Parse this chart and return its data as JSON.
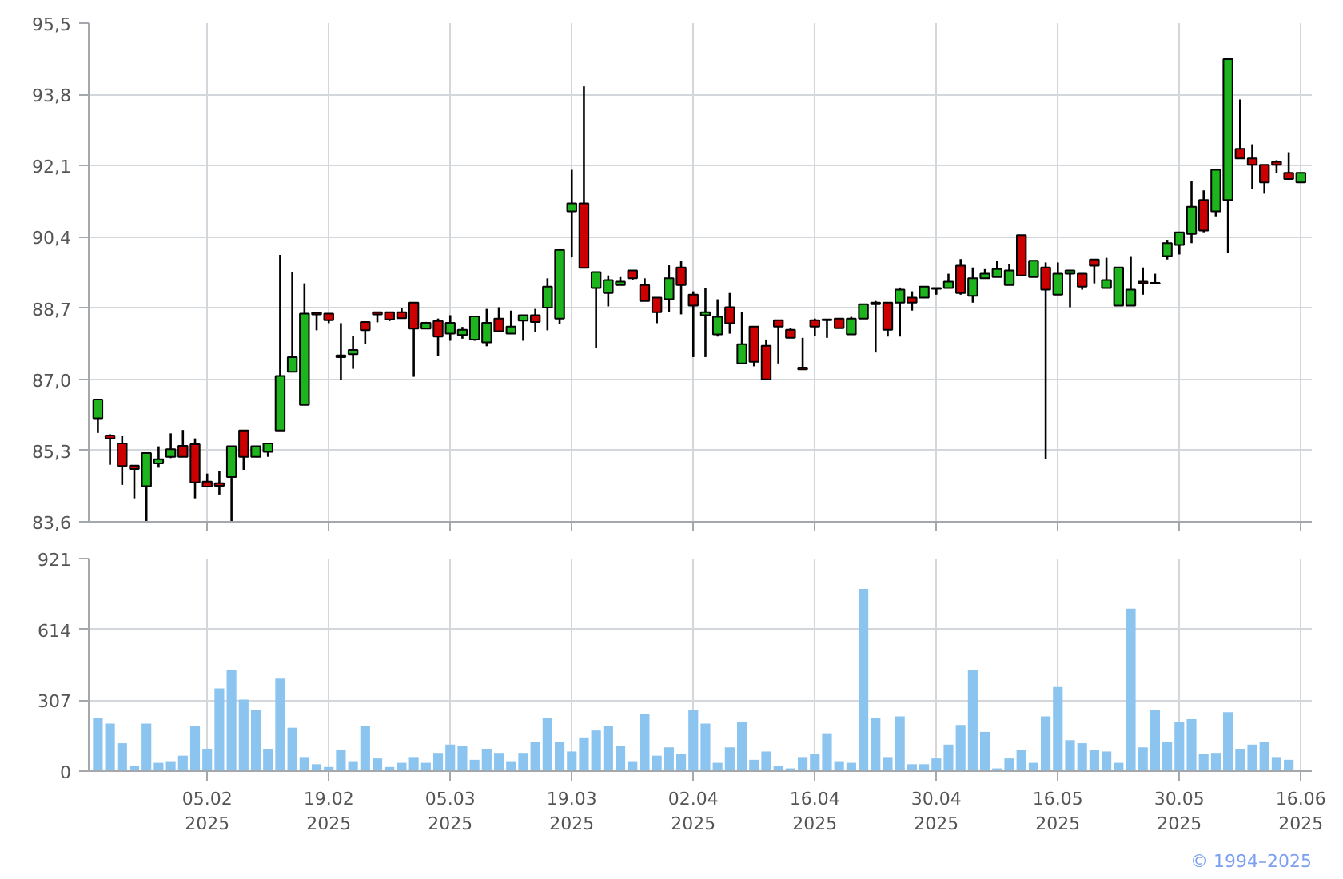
{
  "chart_data": [
    {
      "type": "candlestick",
      "categories": [
        null,
        null,
        null,
        null,
        null,
        null,
        null,
        null,
        null,
        null,
        null,
        null,
        null,
        null,
        null,
        null,
        null,
        null,
        null,
        null,
        null,
        null,
        null,
        null,
        null,
        null,
        null,
        null,
        null,
        null,
        null,
        null,
        null,
        null,
        null,
        null,
        null,
        null,
        null,
        null,
        null,
        null,
        null,
        null,
        null,
        null,
        null,
        null,
        null,
        null,
        null,
        null,
        null,
        null,
        null,
        null,
        null,
        null,
        null,
        null,
        null,
        null,
        null,
        null,
        null,
        null,
        null,
        null,
        null,
        null,
        null,
        null,
        null,
        null,
        null,
        null,
        null,
        null,
        null,
        null,
        null,
        null,
        null,
        null,
        null,
        null,
        null,
        null,
        null,
        null,
        null,
        null,
        null,
        null,
        null,
        null,
        null,
        null,
        null,
        null
      ],
      "ohlc": [
        [
          86.07,
          86.52,
          85.72,
          86.52
        ],
        [
          85.66,
          85.69,
          84.96,
          85.59
        ],
        [
          85.47,
          85.65,
          84.48,
          84.93
        ],
        [
          84.94,
          84.94,
          84.16,
          84.86
        ],
        [
          84.45,
          85.24,
          83.61,
          85.24
        ],
        [
          84.99,
          85.4,
          84.89,
          85.09
        ],
        [
          85.15,
          85.71,
          85.12,
          85.33
        ],
        [
          85.41,
          85.79,
          85.15,
          85.15
        ],
        [
          85.45,
          85.59,
          84.16,
          84.54
        ],
        [
          84.56,
          84.75,
          84.44,
          84.44
        ],
        [
          84.52,
          84.82,
          84.25,
          84.46
        ],
        [
          84.67,
          85.4,
          83.61,
          85.4
        ],
        [
          85.78,
          85.78,
          84.84,
          85.15
        ],
        [
          85.15,
          85.4,
          85.15,
          85.4
        ],
        [
          85.27,
          85.47,
          85.15,
          85.47
        ],
        [
          85.78,
          89.97,
          85.78,
          87.08
        ],
        [
          87.18,
          89.56,
          87.18,
          87.53
        ],
        [
          86.39,
          89.29,
          86.39,
          88.57
        ],
        [
          88.59,
          88.59,
          88.17,
          88.55
        ],
        [
          88.57,
          88.57,
          88.34,
          88.41
        ],
        [
          87.57,
          88.34,
          86.99,
          87.53
        ],
        [
          87.6,
          88.03,
          87.25,
          87.7
        ],
        [
          88.37,
          88.37,
          87.85,
          88.17
        ],
        [
          88.6,
          88.6,
          88.36,
          88.55
        ],
        [
          88.6,
          88.6,
          88.39,
          88.43
        ],
        [
          88.6,
          88.71,
          88.45,
          88.46
        ],
        [
          88.83,
          88.83,
          87.06,
          88.21
        ],
        [
          88.21,
          88.37,
          88.21,
          88.35
        ],
        [
          88.39,
          88.45,
          87.55,
          88.02
        ],
        [
          88.09,
          88.53,
          87.92,
          88.35
        ],
        [
          88.06,
          88.25,
          87.97,
          88.18
        ],
        [
          87.95,
          88.5,
          87.92,
          88.5
        ],
        [
          87.88,
          88.68,
          87.79,
          88.35
        ],
        [
          88.45,
          88.72,
          88.15,
          88.15
        ],
        [
          88.09,
          88.64,
          88.09,
          88.26
        ],
        [
          88.4,
          88.53,
          87.92,
          88.53
        ],
        [
          88.53,
          88.68,
          88.13,
          88.37
        ],
        [
          88.71,
          89.41,
          88.17,
          89.21
        ],
        [
          88.45,
          90.09,
          88.32,
          90.09
        ],
        [
          91.01,
          92.0,
          89.91,
          91.2
        ],
        [
          91.2,
          93.99,
          89.66,
          89.66
        ],
        [
          89.18,
          89.56,
          87.75,
          89.56
        ],
        [
          89.06,
          89.48,
          88.74,
          89.37
        ],
        [
          89.25,
          89.44,
          89.25,
          89.33
        ],
        [
          89.6,
          89.6,
          89.37,
          89.41
        ],
        [
          89.25,
          89.41,
          88.87,
          88.87
        ],
        [
          88.95,
          88.95,
          88.34,
          88.6
        ],
        [
          88.91,
          89.72,
          88.6,
          89.41
        ],
        [
          89.67,
          89.83,
          88.55,
          89.25
        ],
        [
          89.02,
          89.1,
          87.53,
          88.76
        ],
        [
          88.53,
          89.18,
          87.53,
          88.6
        ],
        [
          88.07,
          88.91,
          88.02,
          88.49
        ],
        [
          88.72,
          89.06,
          88.09,
          88.34
        ],
        [
          87.38,
          88.6,
          87.38,
          87.84
        ],
        [
          88.26,
          88.26,
          87.31,
          87.42
        ],
        [
          87.8,
          87.95,
          87.0,
          87.0
        ],
        [
          88.41,
          88.41,
          87.38,
          88.26
        ],
        [
          88.18,
          88.22,
          87.99,
          87.99
        ],
        [
          87.28,
          87.99,
          87.24,
          87.24
        ],
        [
          88.41,
          88.45,
          88.03,
          88.26
        ],
        [
          88.43,
          88.43,
          87.99,
          88.41
        ],
        [
          88.45,
          88.45,
          88.22,
          88.22
        ],
        [
          88.07,
          88.49,
          88.07,
          88.45
        ],
        [
          88.45,
          88.79,
          88.45,
          88.79
        ],
        [
          88.83,
          88.87,
          87.64,
          88.79
        ],
        [
          88.83,
          88.83,
          88.02,
          88.18
        ],
        [
          88.83,
          89.19,
          88.02,
          89.14
        ],
        [
          88.95,
          89.1,
          88.64,
          88.83
        ],
        [
          88.95,
          89.21,
          88.95,
          89.21
        ],
        [
          89.16,
          89.18,
          89.02,
          89.18
        ],
        [
          89.18,
          89.52,
          89.18,
          89.33
        ],
        [
          89.71,
          89.87,
          89.02,
          89.06
        ],
        [
          88.99,
          89.67,
          88.83,
          89.41
        ],
        [
          89.41,
          89.63,
          89.41,
          89.52
        ],
        [
          89.44,
          89.83,
          89.44,
          89.63
        ],
        [
          89.25,
          89.75,
          89.25,
          89.6
        ],
        [
          90.44,
          90.44,
          89.48,
          89.48
        ],
        [
          89.44,
          89.83,
          89.44,
          89.83
        ],
        [
          89.67,
          89.79,
          85.09,
          89.14
        ],
        [
          89.02,
          89.79,
          89.02,
          89.52
        ],
        [
          89.52,
          89.6,
          88.72,
          89.6
        ],
        [
          89.52,
          89.52,
          89.14,
          89.21
        ],
        [
          89.86,
          89.86,
          89.29,
          89.71
        ],
        [
          89.18,
          89.9,
          89.18,
          89.37
        ],
        [
          88.76,
          89.67,
          88.76,
          89.67
        ],
        [
          88.76,
          89.94,
          88.76,
          89.14
        ],
        [
          89.33,
          89.67,
          89.02,
          89.29
        ],
        [
          89.3,
          89.52,
          89.29,
          89.29
        ],
        [
          89.94,
          90.33,
          89.86,
          90.25
        ],
        [
          90.21,
          90.51,
          89.98,
          90.51
        ],
        [
          90.47,
          91.73,
          90.25,
          91.12
        ],
        [
          91.28,
          91.51,
          90.51,
          90.55
        ],
        [
          91.01,
          92.0,
          90.89,
          92.0
        ],
        [
          91.28,
          94.64,
          90.02,
          94.64
        ],
        [
          92.5,
          93.68,
          92.27,
          92.27
        ],
        [
          92.27,
          92.61,
          91.55,
          92.12
        ],
        [
          92.12,
          92.12,
          91.43,
          91.7
        ],
        [
          92.19,
          92.23,
          91.92,
          92.12
        ],
        [
          91.93,
          92.42,
          91.78,
          91.78
        ],
        [
          91.7,
          91.93,
          91.7,
          91.93
        ]
      ],
      "colors": [
        "#1db41d",
        "#cc0000",
        "#cc0000",
        "#cc0000",
        "#1db41d",
        "#1db41d",
        "#1db41d",
        "#cc0000",
        "#cc0000",
        "#cc0000",
        "#cc0000",
        "#1db41d",
        "#cc0000",
        "#1db41d",
        "#1db41d",
        "#1db41d",
        "#1db41d",
        "#1db41d",
        "#cc0000",
        "#cc0000",
        "#cc0000",
        "#1db41d",
        "#cc0000",
        "#cc0000",
        "#cc0000",
        "#cc0000",
        "#cc0000",
        "#1db41d",
        "#cc0000",
        "#1db41d",
        "#1db41d",
        "#1db41d",
        "#1db41d",
        "#cc0000",
        "#1db41d",
        "#1db41d",
        "#cc0000",
        "#1db41d",
        "#1db41d",
        "#1db41d",
        "#cc0000",
        "#1db41d",
        "#1db41d",
        "#1db41d",
        "#cc0000",
        "#cc0000",
        "#cc0000",
        "#1db41d",
        "#cc0000",
        "#cc0000",
        "#1db41d",
        "#1db41d",
        "#cc0000",
        "#1db41d",
        "#cc0000",
        "#cc0000",
        "#cc0000",
        "#cc0000",
        "#cc0000",
        "#cc0000",
        "#cc0000",
        "#cc0000",
        "#1db41d",
        "#1db41d",
        "#cc0000",
        "#cc0000",
        "#1db41d",
        "#cc0000",
        "#1db41d",
        "#1db41d",
        "#1db41d",
        "#cc0000",
        "#1db41d",
        "#1db41d",
        "#1db41d",
        "#1db41d",
        "#cc0000",
        "#1db41d",
        "#cc0000",
        "#1db41d",
        "#1db41d",
        "#cc0000",
        "#cc0000",
        "#1db41d",
        "#1db41d",
        "#1db41d",
        "#cc0000",
        "#cc0000",
        "#1db41d",
        "#1db41d",
        "#1db41d",
        "#cc0000",
        "#1db41d",
        "#1db41d",
        "#cc0000",
        "#cc0000",
        "#cc0000",
        "#cc0000",
        "#cc0000",
        "#1db41d"
      ],
      "ylim": [
        83.6,
        95.5
      ],
      "yticks": [
        {
          "value": 83.6,
          "label": "83,6"
        },
        {
          "value": 85.3,
          "label": "85,3"
        },
        {
          "value": 87.0,
          "label": "87,0"
        },
        {
          "value": 88.7,
          "label": "88,7"
        },
        {
          "value": 90.4,
          "label": "90,4"
        },
        {
          "value": 92.1,
          "label": "92,1"
        },
        {
          "value": 93.8,
          "label": "93,8"
        },
        {
          "value": 95.5,
          "label": "95,5"
        }
      ],
      "grid": true,
      "tick_labels": "y"
    },
    {
      "type": "bar",
      "categories": [
        null,
        null,
        null,
        null,
        null,
        null,
        null,
        null,
        null,
        "05.02\n2025",
        null,
        null,
        null,
        null,
        null,
        null,
        null,
        null,
        null,
        "19.02\n2025",
        null,
        null,
        null,
        null,
        null,
        null,
        null,
        null,
        null,
        "05.03\n2025",
        null,
        null,
        null,
        null,
        null,
        null,
        null,
        null,
        null,
        "19.03\n2025",
        null,
        null,
        null,
        null,
        null,
        null,
        null,
        null,
        null,
        "02.04\n2025",
        null,
        null,
        null,
        null,
        null,
        null,
        null,
        null,
        null,
        "16.04\n2025",
        null,
        null,
        null,
        null,
        null,
        null,
        null,
        null,
        null,
        "30.04\n2025",
        null,
        null,
        null,
        null,
        null,
        null,
        null,
        null,
        null,
        "16.05\n2025",
        null,
        null,
        null,
        null,
        null,
        null,
        null,
        null,
        null,
        "30.05\n2025",
        null,
        null,
        null,
        null,
        null,
        null,
        null,
        null,
        null,
        "16.06\n2025"
      ],
      "values": [
        231,
        206,
        121,
        24,
        206,
        36,
        43,
        67,
        194,
        97,
        358,
        437,
        310,
        267,
        97,
        401,
        188,
        61,
        30,
        18,
        91,
        43,
        194,
        55,
        18,
        36,
        61,
        36,
        79,
        115,
        109,
        49,
        97,
        79,
        43,
        79,
        128,
        231,
        128,
        85,
        146,
        176,
        194,
        109,
        43,
        249,
        67,
        103,
        73,
        267,
        206,
        36,
        103,
        213,
        49,
        85,
        24,
        12,
        61,
        73,
        164,
        43,
        36,
        789,
        231,
        61,
        237,
        30,
        30,
        55,
        115,
        200,
        437,
        170,
        12,
        55,
        91,
        36,
        237,
        364,
        134,
        121,
        91,
        85,
        36,
        704,
        103,
        267,
        128,
        213,
        225,
        73,
        79,
        255,
        97,
        115,
        128,
        61,
        49,
        6
      ],
      "color": "#8cc4f0",
      "ylim": [
        0,
        921
      ],
      "yticks": [
        0,
        307,
        614,
        921
      ],
      "grid": true,
      "annotations": [
        "© 1994–2025"
      ]
    }
  ]
}
